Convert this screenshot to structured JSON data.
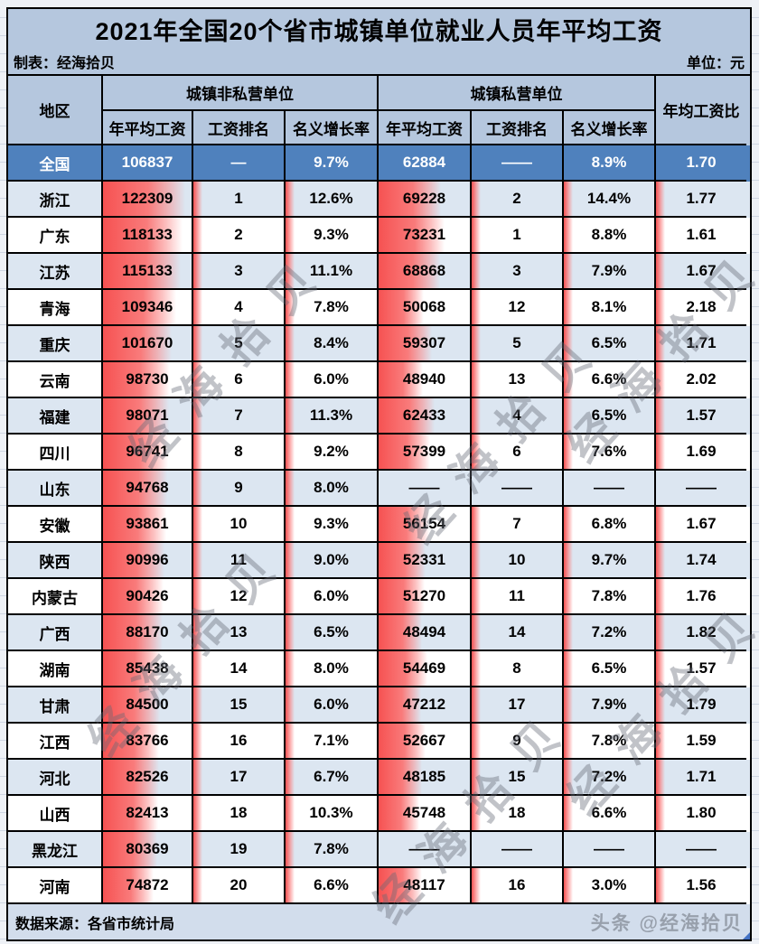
{
  "page": {
    "title": "2021年全国20个省市城镇单位就业人员年平均工资",
    "meta_left": "制表：经海拾贝",
    "meta_right": "单位：元",
    "footer_left": "数据来源：各省市统计局",
    "footer_right": "头条 @经海拾贝",
    "watermark": "经海拾贝"
  },
  "colors": {
    "header_fill": "#b5c7de",
    "stripe_fill": "#dce6f1",
    "national_row_fill": "#4f81bd",
    "data_bar_red": "#f65252",
    "border": "#000000",
    "footer_fill": "#d2ddec"
  },
  "chart_data": {
    "type": "table",
    "title": "2021年全国20个省市城镇单位就业人员年平均工资",
    "unit": "元",
    "region_header": "地区",
    "group_headers": [
      "城镇非私营单位",
      "城镇私营单位"
    ],
    "sub_headers": [
      "年平均工资",
      "工资排名",
      "名义增长率"
    ],
    "ratio_header": "年均工资比",
    "rows": [
      {
        "region": "全国",
        "np_wage": "106837",
        "np_rank": "—",
        "np_growth": "9.7%",
        "p_wage": "62884",
        "p_rank": "——",
        "p_growth": "8.9%",
        "ratio": "1.70",
        "national": true
      },
      {
        "region": "浙江",
        "np_wage": "122309",
        "np_rank": "1",
        "np_growth": "12.6%",
        "p_wage": "69228",
        "p_rank": "2",
        "p_growth": "14.4%",
        "ratio": "1.77"
      },
      {
        "region": "广东",
        "np_wage": "118133",
        "np_rank": "2",
        "np_growth": "9.3%",
        "p_wage": "73231",
        "p_rank": "1",
        "p_growth": "8.8%",
        "ratio": "1.61"
      },
      {
        "region": "江苏",
        "np_wage": "115133",
        "np_rank": "3",
        "np_growth": "11.1%",
        "p_wage": "68868",
        "p_rank": "3",
        "p_growth": "7.9%",
        "ratio": "1.67"
      },
      {
        "region": "青海",
        "np_wage": "109346",
        "np_rank": "4",
        "np_growth": "7.8%",
        "p_wage": "50068",
        "p_rank": "12",
        "p_growth": "8.1%",
        "ratio": "2.18"
      },
      {
        "region": "重庆",
        "np_wage": "101670",
        "np_rank": "5",
        "np_growth": "8.4%",
        "p_wage": "59307",
        "p_rank": "5",
        "p_growth": "6.5%",
        "ratio": "1.71"
      },
      {
        "region": "云南",
        "np_wage": "98730",
        "np_rank": "6",
        "np_growth": "6.0%",
        "p_wage": "48940",
        "p_rank": "13",
        "p_growth": "6.6%",
        "ratio": "2.02"
      },
      {
        "region": "福建",
        "np_wage": "98071",
        "np_rank": "7",
        "np_growth": "11.3%",
        "p_wage": "62433",
        "p_rank": "4",
        "p_growth": "6.5%",
        "ratio": "1.57"
      },
      {
        "region": "四川",
        "np_wage": "96741",
        "np_rank": "8",
        "np_growth": "9.2%",
        "p_wage": "57399",
        "p_rank": "6",
        "p_growth": "7.6%",
        "ratio": "1.69"
      },
      {
        "region": "山东",
        "np_wage": "94768",
        "np_rank": "9",
        "np_growth": "8.0%",
        "p_wage": "——",
        "p_rank": "——",
        "p_growth": "——",
        "ratio": "——"
      },
      {
        "region": "安徽",
        "np_wage": "93861",
        "np_rank": "10",
        "np_growth": "9.3%",
        "p_wage": "56154",
        "p_rank": "7",
        "p_growth": "6.8%",
        "ratio": "1.67"
      },
      {
        "region": "陕西",
        "np_wage": "90996",
        "np_rank": "11",
        "np_growth": "9.0%",
        "p_wage": "52331",
        "p_rank": "10",
        "p_growth": "9.7%",
        "ratio": "1.74"
      },
      {
        "region": "内蒙古",
        "np_wage": "90426",
        "np_rank": "12",
        "np_growth": "6.0%",
        "p_wage": "51270",
        "p_rank": "11",
        "p_growth": "7.8%",
        "ratio": "1.76"
      },
      {
        "region": "广西",
        "np_wage": "88170",
        "np_rank": "13",
        "np_growth": "6.5%",
        "p_wage": "48494",
        "p_rank": "14",
        "p_growth": "7.2%",
        "ratio": "1.82"
      },
      {
        "region": "湖南",
        "np_wage": "85438",
        "np_rank": "14",
        "np_growth": "8.0%",
        "p_wage": "54469",
        "p_rank": "8",
        "p_growth": "6.5%",
        "ratio": "1.57"
      },
      {
        "region": "甘肃",
        "np_wage": "84500",
        "np_rank": "15",
        "np_growth": "6.0%",
        "p_wage": "47212",
        "p_rank": "17",
        "p_growth": "7.9%",
        "ratio": "1.79"
      },
      {
        "region": "江西",
        "np_wage": "83766",
        "np_rank": "16",
        "np_growth": "7.1%",
        "p_wage": "52667",
        "p_rank": "9",
        "p_growth": "7.8%",
        "ratio": "1.59"
      },
      {
        "region": "河北",
        "np_wage": "82526",
        "np_rank": "17",
        "np_growth": "6.7%",
        "p_wage": "48185",
        "p_rank": "15",
        "p_growth": "7.2%",
        "ratio": "1.71"
      },
      {
        "region": "山西",
        "np_wage": "82413",
        "np_rank": "18",
        "np_growth": "10.3%",
        "p_wage": "45748",
        "p_rank": "18",
        "p_growth": "6.6%",
        "ratio": "1.80"
      },
      {
        "region": "黑龙江",
        "np_wage": "80369",
        "np_rank": "19",
        "np_growth": "7.8%",
        "p_wage": "——",
        "p_rank": "——",
        "p_growth": "——",
        "ratio": "——"
      },
      {
        "region": "河南",
        "np_wage": "74872",
        "np_rank": "20",
        "np_growth": "6.6%",
        "p_wage": "48117",
        "p_rank": "16",
        "p_growth": "3.0%",
        "ratio": "1.56"
      }
    ]
  }
}
